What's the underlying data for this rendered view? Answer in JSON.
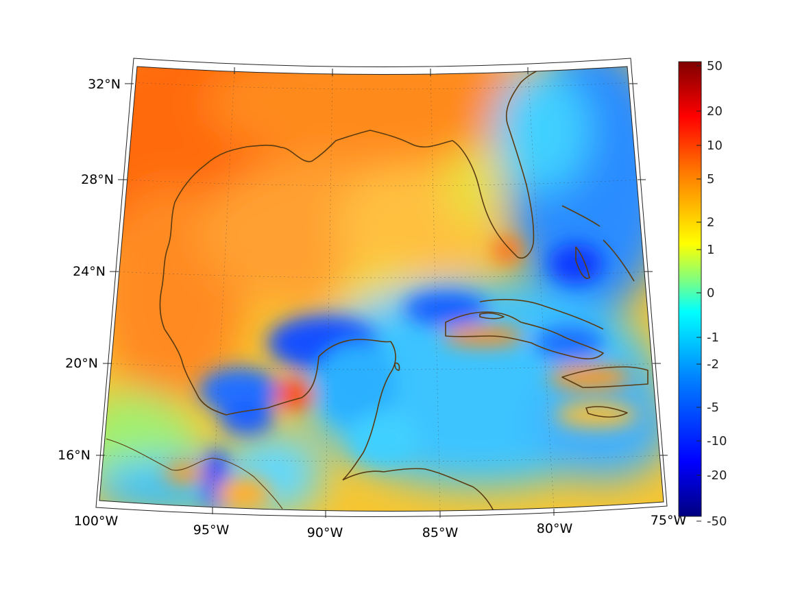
{
  "map": {
    "latitude_labels": [
      "32°N",
      "28°N",
      "24°N",
      "20°N",
      "16°N"
    ],
    "longitude_labels": [
      "100°W",
      "95°W",
      "90°W",
      "85°W",
      "80°W",
      "75°W"
    ]
  },
  "colorbar": {
    "ticks": [
      "50",
      "20",
      "10",
      "5",
      "2",
      "1",
      "0",
      "-1",
      "-2",
      "-5",
      "-10",
      "-20",
      "-50"
    ],
    "colormap": [
      "#00007f",
      "#0000ff",
      "#007fff",
      "#00ffff",
      "#7fff7f",
      "#ffff00",
      "#ff7f00",
      "#ff0000",
      "#7f0000"
    ]
  },
  "colors": {
    "coastline": "#5a3a10",
    "land_north": "#ff7a14",
    "gulf_center": "#ffb040",
    "caribbean": "#3fc8ff",
    "campeche": "#1a5cff"
  }
}
